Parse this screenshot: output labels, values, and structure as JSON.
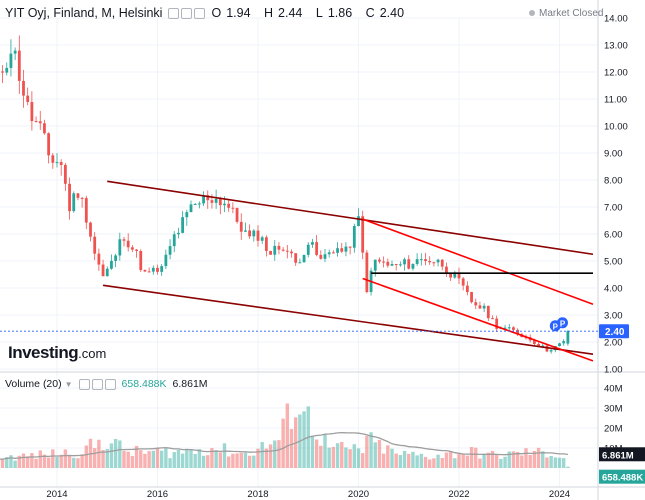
{
  "header": {
    "symbol": "YIT Oyj, Finland, M, Helsinki",
    "open_label": "O",
    "open": "1.94",
    "high_label": "H",
    "high": "2.44",
    "low_label": "L",
    "low": "1.86",
    "close_label": "C",
    "close": "2.40",
    "status": "Market Closed"
  },
  "brand": {
    "name": "Investing",
    "domain": ".com"
  },
  "volume_header": {
    "title": "Volume (20)",
    "value1": "658.488K",
    "value2": "6.861M"
  },
  "colors": {
    "up": "#26a69a",
    "down": "#ef5350",
    "channel": "#8b0000",
    "inner_channel": "#ff0000",
    "support": "#000000",
    "price_tag": "#2962ff",
    "ma": "#9e9e9e"
  },
  "chart_data": [
    {
      "type": "candlestick",
      "title": "YIT Oyj, Finland, M, Helsinki",
      "x_ticks": [
        "2014",
        "2016",
        "2018",
        "2020",
        "2022",
        "2024"
      ],
      "y_ticks": [
        "1.00",
        "2.00",
        "3.00",
        "4.00",
        "5.00",
        "6.00",
        "7.00",
        "8.00",
        "9.00",
        "10.00",
        "11.00",
        "12.00",
        "13.00",
        "14.00"
      ],
      "ylim": [
        1.0,
        14.0
      ],
      "last_price_label": "2.40",
      "last_price": 2.4,
      "close_path": [
        [
          "2012-10",
          11.0
        ],
        [
          "2012-12",
          12.2
        ],
        [
          "2013-02",
          13.0
        ],
        [
          "2013-04",
          12.0
        ],
        [
          "2013-06",
          10.6
        ],
        [
          "2013-09",
          9.8
        ],
        [
          "2013-11",
          8.9
        ],
        [
          "2014-02",
          8.6
        ],
        [
          "2014-04",
          7.0
        ],
        [
          "2014-06",
          7.6
        ],
        [
          "2014-08",
          6.7
        ],
        [
          "2014-10",
          5.3
        ],
        [
          "2014-12",
          4.4
        ],
        [
          "2015-02",
          4.9
        ],
        [
          "2015-05",
          6.0
        ],
        [
          "2015-08",
          5.2
        ],
        [
          "2015-10",
          4.5
        ],
        [
          "2016-02",
          4.7
        ],
        [
          "2016-05",
          5.9
        ],
        [
          "2016-09",
          6.9
        ],
        [
          "2017-01",
          7.4
        ],
        [
          "2017-05",
          7.2
        ],
        [
          "2017-08",
          6.5
        ],
        [
          "2017-11",
          5.8
        ],
        [
          "2018-01",
          6.0
        ],
        [
          "2018-04",
          5.3
        ],
        [
          "2018-07",
          5.6
        ],
        [
          "2018-10",
          4.9
        ],
        [
          "2019-01",
          5.7
        ],
        [
          "2019-04",
          5.0
        ],
        [
          "2019-07",
          5.5
        ],
        [
          "2019-10",
          5.3
        ],
        [
          "2020-01",
          6.5
        ],
        [
          "2020-03",
          4.0
        ],
        [
          "2020-05",
          5.0
        ],
        [
          "2020-09",
          4.8
        ],
        [
          "2021-01",
          4.9
        ],
        [
          "2021-05",
          5.1
        ],
        [
          "2021-09",
          4.9
        ],
        [
          "2022-01",
          4.2
        ],
        [
          "2022-04",
          3.5
        ],
        [
          "2022-07",
          3.2
        ],
        [
          "2022-10",
          2.6
        ],
        [
          "2023-02",
          2.4
        ],
        [
          "2023-06",
          2.1
        ],
        [
          "2023-10",
          1.7
        ],
        [
          "2024-01",
          1.9
        ],
        [
          "2024-02",
          2.0
        ],
        [
          "2024-03",
          2.4
        ]
      ],
      "last_candle": {
        "date": "2024-03",
        "open": 1.94,
        "high": 2.44,
        "low": 1.86,
        "close": 2.4
      },
      "trendlines": [
        {
          "name": "channel-upper",
          "color": "#8b0000",
          "from": [
            "2015-01",
            7.95
          ],
          "to": [
            "2024-09",
            5.25
          ]
        },
        {
          "name": "channel-lower",
          "color": "#8b0000",
          "from": [
            "2014-12",
            4.1
          ],
          "to": [
            "2024-09",
            1.55
          ]
        },
        {
          "name": "inner-upper",
          "color": "#ff0000",
          "from": [
            "2020-02",
            6.55
          ],
          "to": [
            "2024-09",
            3.4
          ]
        },
        {
          "name": "inner-lower",
          "color": "#ff0000",
          "from": [
            "2020-02",
            4.35
          ],
          "to": [
            "2024-09",
            1.3
          ]
        },
        {
          "name": "support",
          "color": "#000000",
          "from": [
            "2020-04",
            4.55
          ],
          "to": [
            "2024-09",
            4.55
          ]
        }
      ],
      "events": [
        {
          "date": "2023-12",
          "label": "P"
        },
        {
          "date": "2024-01",
          "label": "P"
        }
      ]
    },
    {
      "type": "bar",
      "title": "Volume (20)",
      "y_ticks": [
        "10M",
        "20M",
        "30M",
        "40M"
      ],
      "ylim": [
        0,
        40
      ],
      "unit": "M",
      "last_volume_label": "658.488K",
      "last_volume": 0.658,
      "ma_label": "6.861M",
      "ma": 6.861,
      "volume_path": [
        [
          "2012-10",
          5
        ],
        [
          "2013-06",
          6
        ],
        [
          "2014-06",
          8
        ],
        [
          "2015-01",
          14
        ],
        [
          "2015-06",
          8
        ],
        [
          "2016-06",
          8
        ],
        [
          "2017-02",
          10
        ],
        [
          "2017-10",
          7
        ],
        [
          "2018-06",
          14
        ],
        [
          "2018-10",
          34
        ],
        [
          "2019-06",
          10
        ],
        [
          "2020-02",
          9
        ],
        [
          "2020-03",
          14
        ],
        [
          "2020-10",
          7
        ],
        [
          "2021-06",
          6
        ],
        [
          "2022-04",
          8
        ],
        [
          "2022-10",
          6
        ],
        [
          "2023-06",
          8
        ],
        [
          "2023-12",
          7
        ],
        [
          "2024-02",
          5
        ]
      ]
    }
  ]
}
